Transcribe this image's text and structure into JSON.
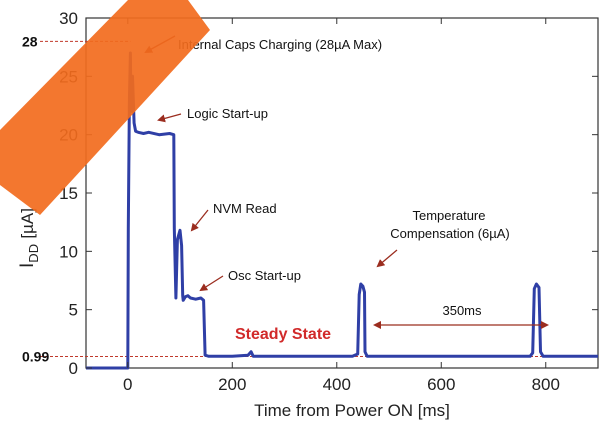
{
  "chart_data": {
    "type": "line",
    "title": "",
    "xlabel": "Time from Power ON [ms]",
    "ylabel": "IDD [µA]",
    "ylabel_main": "I",
    "ylabel_sub": "DD",
    "ylabel_unit": "[µA]",
    "xlim": [
      -80,
      900
    ],
    "ylim": [
      0,
      30
    ],
    "xticks": [
      0,
      200,
      400,
      600,
      800
    ],
    "yticks": [
      0,
      5,
      10,
      15,
      20,
      25,
      30
    ],
    "grid": false,
    "series": [
      {
        "color": "#2f3fa6",
        "x": [
          -80,
          0,
          1,
          3,
          5,
          6,
          9,
          12,
          15,
          20,
          30,
          40,
          60,
          80,
          88,
          89,
          92,
          95,
          100,
          103,
          105,
          106,
          110,
          115,
          120,
          130,
          140,
          145,
          148,
          155,
          200,
          230,
          236,
          240,
          300,
          400,
          430,
          440,
          443,
          446,
          450,
          453,
          454,
          458,
          500,
          600,
          700,
          770,
          775,
          778,
          782,
          787,
          790,
          795,
          800,
          860,
          900
        ],
        "y": [
          0,
          0,
          12,
          23,
          27,
          22,
          25,
          21,
          20.3,
          20.2,
          20.1,
          20.2,
          20,
          20.1,
          20,
          12,
          6,
          11,
          11.8,
          10.5,
          6.2,
          5.8,
          6.1,
          6.2,
          6,
          5.9,
          6,
          5.8,
          1.1,
          1.0,
          1.0,
          1.1,
          1.4,
          1.0,
          1.0,
          1.0,
          1.0,
          1.2,
          6.3,
          7.2,
          7,
          6.5,
          1.4,
          1.0,
          1.0,
          1.0,
          1.0,
          1.0,
          1.3,
          6.8,
          7.2,
          6.9,
          1.4,
          1.0,
          1.0,
          1.0,
          1.0
        ]
      }
    ],
    "reference_lines": [
      {
        "label": "28",
        "value": 28,
        "color": "#c0392b"
      },
      {
        "label": "0.99",
        "value": 0.99,
        "color": "#c0392b"
      }
    ],
    "annotations": [
      {
        "text": "Internal Caps Charging (28µA Max)"
      },
      {
        "text": "Logic Start-up"
      },
      {
        "text": "NVM Read"
      },
      {
        "text": "Osc Start-up"
      },
      {
        "text": "Temperature"
      },
      {
        "text": "Compensation (6µA)"
      },
      {
        "text": "Steady State"
      },
      {
        "text": "350ms"
      }
    ],
    "colors": {
      "line": "#2f3fa6",
      "annotation": "#9b2d1f",
      "steady": "#d12a2a",
      "watermark": "#f26b1d"
    }
  }
}
